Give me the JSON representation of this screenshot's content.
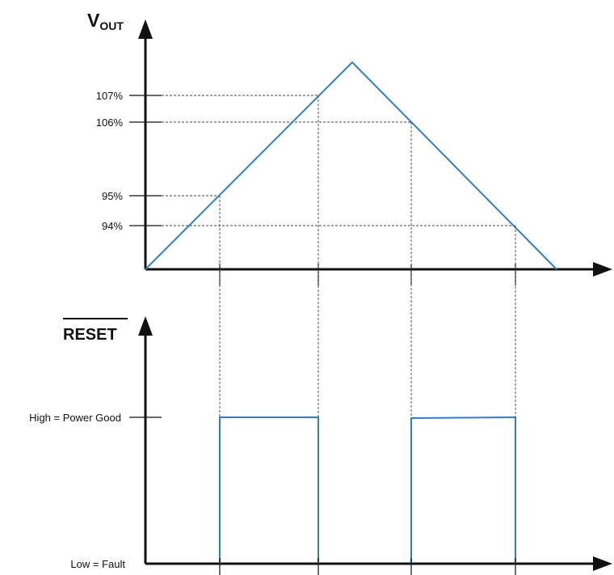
{
  "top_plot": {
    "ylabel_main": "V",
    "ylabel_sub": "OUT",
    "threshold_labels": [
      "107%",
      "106%",
      "95%",
      "94%"
    ]
  },
  "bottom_plot": {
    "ylabel": "RESET",
    "high_label": "High = Power Good",
    "low_label": "Low = Fault"
  },
  "colors": {
    "trace": "#2f7fc8",
    "axis": "#111111"
  }
}
